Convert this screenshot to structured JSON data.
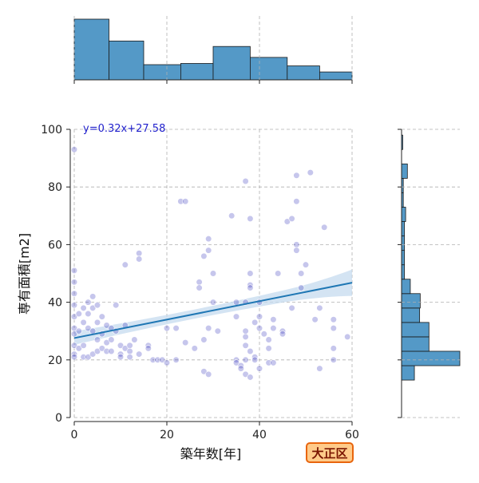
{
  "badge": {
    "label": "大正区"
  },
  "chart_data": {
    "type": "scatter",
    "xlabel": "築年数[年]",
    "ylabel": "専有面積[m2]",
    "xlim": [
      0,
      60
    ],
    "ylim": [
      0,
      100
    ],
    "x_ticks": [
      0,
      20,
      40,
      60
    ],
    "y_ticks": [
      0,
      20,
      40,
      60,
      80,
      100
    ],
    "grid": true,
    "regression": {
      "label": "y=0.32x+27.58",
      "slope": 0.32,
      "intercept": 27.58,
      "color": "#1f77b4",
      "band_color": "#c6dbef"
    },
    "point_color": "#3333bb",
    "points": [
      [
        0,
        93
      ],
      [
        0,
        51
      ],
      [
        0,
        47
      ],
      [
        0,
        43
      ],
      [
        0,
        39
      ],
      [
        0,
        35
      ],
      [
        0,
        31
      ],
      [
        0,
        29
      ],
      [
        0,
        25
      ],
      [
        0,
        22
      ],
      [
        0,
        21
      ],
      [
        1,
        36
      ],
      [
        1,
        30
      ],
      [
        1,
        24
      ],
      [
        2,
        38
      ],
      [
        2,
        33
      ],
      [
        2,
        25
      ],
      [
        2,
        21
      ],
      [
        3,
        40
      ],
      [
        3,
        36
      ],
      [
        3,
        31
      ],
      [
        3,
        21
      ],
      [
        4,
        42
      ],
      [
        4,
        38
      ],
      [
        4,
        30
      ],
      [
        4,
        22
      ],
      [
        5,
        39
      ],
      [
        5,
        33
      ],
      [
        5,
        27
      ],
      [
        5,
        23
      ],
      [
        6,
        35
      ],
      [
        6,
        29
      ],
      [
        6,
        24
      ],
      [
        7,
        32
      ],
      [
        7,
        26
      ],
      [
        7,
        23
      ],
      [
        8,
        31
      ],
      [
        8,
        27
      ],
      [
        8,
        23
      ],
      [
        9,
        39
      ],
      [
        9,
        30
      ],
      [
        10,
        25
      ],
      [
        10,
        22
      ],
      [
        10,
        21
      ],
      [
        11,
        53
      ],
      [
        11,
        32
      ],
      [
        11,
        24
      ],
      [
        12,
        25
      ],
      [
        12,
        23
      ],
      [
        12,
        21
      ],
      [
        13,
        27
      ],
      [
        14,
        57
      ],
      [
        14,
        55
      ],
      [
        14,
        22
      ],
      [
        16,
        25
      ],
      [
        16,
        24
      ],
      [
        17,
        20
      ],
      [
        18,
        20
      ],
      [
        19,
        20
      ],
      [
        20,
        19
      ],
      [
        20,
        31
      ],
      [
        22,
        31
      ],
      [
        22,
        20
      ],
      [
        23,
        75
      ],
      [
        24,
        75
      ],
      [
        24,
        26
      ],
      [
        26,
        24
      ],
      [
        27,
        47
      ],
      [
        27,
        45
      ],
      [
        28,
        56
      ],
      [
        28,
        27
      ],
      [
        28,
        16
      ],
      [
        29,
        62
      ],
      [
        29,
        58
      ],
      [
        29,
        31
      ],
      [
        29,
        15
      ],
      [
        30,
        50
      ],
      [
        30,
        40
      ],
      [
        31,
        30
      ],
      [
        34,
        70
      ],
      [
        35,
        40
      ],
      [
        35,
        35
      ],
      [
        35,
        20
      ],
      [
        35,
        19
      ],
      [
        36,
        18
      ],
      [
        36,
        17
      ],
      [
        37,
        82
      ],
      [
        37,
        40
      ],
      [
        37,
        30
      ],
      [
        37,
        28
      ],
      [
        37,
        25
      ],
      [
        37,
        20
      ],
      [
        37,
        15
      ],
      [
        38,
        69
      ],
      [
        38,
        50
      ],
      [
        38,
        46
      ],
      [
        38,
        45
      ],
      [
        38,
        23
      ],
      [
        38,
        14
      ],
      [
        39,
        33
      ],
      [
        39,
        21
      ],
      [
        39,
        20
      ],
      [
        40,
        40
      ],
      [
        40,
        35
      ],
      [
        40,
        31
      ],
      [
        40,
        17
      ],
      [
        41,
        29
      ],
      [
        42,
        27
      ],
      [
        42,
        24
      ],
      [
        42,
        19
      ],
      [
        43,
        34
      ],
      [
        43,
        31
      ],
      [
        43,
        19
      ],
      [
        44,
        50
      ],
      [
        45,
        30
      ],
      [
        45,
        29
      ],
      [
        46,
        68
      ],
      [
        47,
        69
      ],
      [
        47,
        38
      ],
      [
        48,
        84
      ],
      [
        48,
        75
      ],
      [
        48,
        60
      ],
      [
        48,
        58
      ],
      [
        49,
        50
      ],
      [
        49,
        45
      ],
      [
        50,
        53
      ],
      [
        51,
        85
      ],
      [
        52,
        34
      ],
      [
        53,
        38
      ],
      [
        53,
        17
      ],
      [
        54,
        66
      ],
      [
        56,
        34
      ],
      [
        56,
        31
      ],
      [
        56,
        24
      ],
      [
        56,
        20
      ],
      [
        59,
        28
      ]
    ],
    "top_hist": {
      "bins": [
        0,
        7.5,
        15,
        23,
        30,
        38,
        46,
        53,
        60
      ],
      "heights": [
        1.0,
        0.64,
        0.25,
        0.27,
        0.55,
        0.37,
        0.23,
        0.13
      ]
    },
    "right_hist": {
      "bins": [
        13,
        18,
        23,
        28,
        33,
        38,
        43,
        48,
        53,
        58,
        63,
        68,
        73,
        78,
        83,
        88,
        93,
        98,
        100
      ],
      "heights": [
        0.22,
        1.0,
        0.47,
        0.47,
        0.31,
        0.32,
        0.15,
        0.05,
        0.05,
        0.05,
        0.05,
        0.07,
        0.03,
        0.03,
        0.1,
        0.0,
        0.02,
        0.0
      ]
    }
  }
}
